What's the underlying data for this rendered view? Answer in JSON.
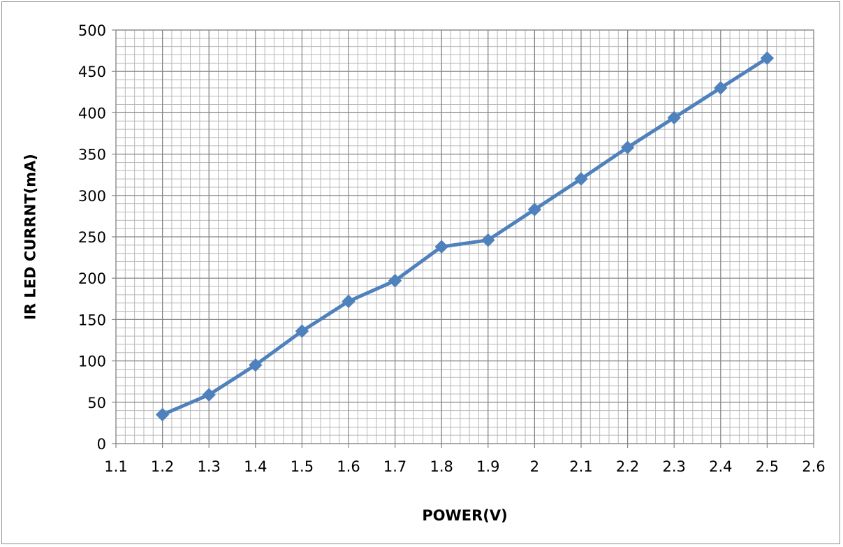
{
  "chart_data": {
    "type": "line",
    "title": "",
    "xlabel": "POWER(V)",
    "ylabel": "IR LED CURRNT(mA)",
    "xlim": [
      1.1,
      2.6
    ],
    "ylim": [
      0,
      500
    ],
    "x_ticks": [
      "1.1",
      "1.2",
      "1.3",
      "1.4",
      "1.5",
      "1.6",
      "1.7",
      "1.8",
      "1.9",
      "2",
      "2.1",
      "2.2",
      "2.3",
      "2.4",
      "2.5",
      "2.6"
    ],
    "y_ticks": [
      "0",
      "50",
      "100",
      "150",
      "200",
      "250",
      "300",
      "350",
      "400",
      "450",
      "500"
    ],
    "grid": true,
    "legend": "none",
    "series": [
      {
        "marker": "diamond",
        "color": "#4F81BD",
        "x": [
          1.2,
          1.3,
          1.4,
          1.5,
          1.6,
          1.7,
          1.8,
          1.9,
          2.0,
          2.1,
          2.2,
          2.3,
          2.4,
          2.5
        ],
        "y": [
          35,
          59,
          95,
          136,
          172,
          197,
          238,
          246,
          283,
          320,
          358,
          394,
          430,
          466
        ]
      }
    ]
  }
}
